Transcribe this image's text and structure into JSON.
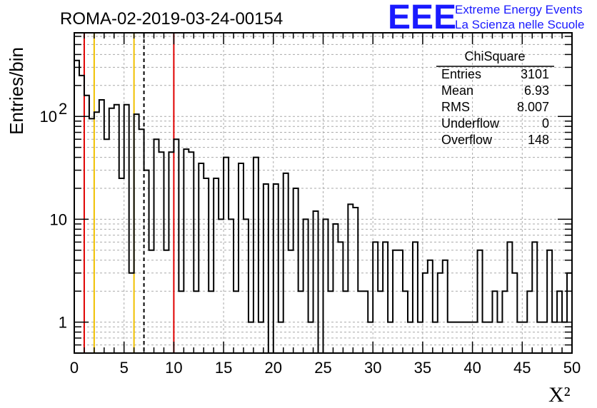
{
  "header": {
    "title": "ROMA-02-2019-03-24-00154",
    "logo_text": "EEE",
    "logo_line1": "Extreme Energy Events",
    "logo_line2": "La Scienza nelle Scuole"
  },
  "stats_box": {
    "title": "ChiSquare",
    "rows": [
      {
        "label": "Entries",
        "value": "3101"
      },
      {
        "label": "Mean",
        "value": "6.93"
      },
      {
        "label": "RMS",
        "value": "8.007"
      },
      {
        "label": "Underflow",
        "value": "0"
      },
      {
        "label": "Overflow",
        "value": "148"
      }
    ]
  },
  "colors": {
    "histogram": "#000000",
    "grid": "#aaaaaa",
    "red_line": "#e00000",
    "yellow_line": "#f0c000",
    "dashed_line": "#000000"
  },
  "chart_data": {
    "type": "histogram",
    "xlabel": "X²",
    "ylabel": "Entries/bin",
    "xlim": [
      0,
      50
    ],
    "ylim": [
      0.5,
      650
    ],
    "yscale": "log",
    "grid": true,
    "bin_width": 0.5,
    "x_ticks": [
      0,
      5,
      10,
      15,
      20,
      25,
      30,
      35,
      40,
      45,
      50
    ],
    "y_tick_labels": [
      {
        "value": 1,
        "label": "1"
      },
      {
        "value": 10,
        "label": "10"
      },
      {
        "value": 100,
        "label": "10",
        "exponent": "2"
      }
    ],
    "values": [
      350,
      250,
      160,
      95,
      110,
      145,
      60,
      120,
      130,
      25,
      130,
      3,
      105,
      75,
      30,
      5,
      60,
      45,
      5,
      45,
      60,
      2,
      48,
      45,
      2,
      35,
      25,
      2,
      25,
      10,
      40,
      10,
      2,
      35,
      10,
      1,
      40,
      1,
      22,
      0,
      22,
      1,
      28,
      5,
      20,
      2,
      10,
      1,
      12,
      0,
      10,
      2,
      9,
      6,
      2,
      14,
      13,
      2,
      2,
      1,
      6,
      2,
      6,
      1,
      5,
      5,
      2,
      1,
      6,
      1,
      3,
      4,
      1,
      3,
      4,
      1,
      1,
      1,
      1,
      1,
      1,
      5,
      1,
      1,
      2,
      1,
      2,
      6,
      3,
      1,
      1,
      2,
      6,
      1,
      1,
      5,
      1,
      2,
      1,
      3
    ],
    "vertical_lines": [
      {
        "x": 1,
        "color": "red",
        "style": "solid"
      },
      {
        "x": 2,
        "color": "yellow",
        "style": "solid"
      },
      {
        "x": 6,
        "color": "yellow",
        "style": "solid"
      },
      {
        "x": 7,
        "color": "black",
        "style": "dashed"
      },
      {
        "x": 10,
        "color": "red",
        "style": "solid"
      }
    ]
  }
}
